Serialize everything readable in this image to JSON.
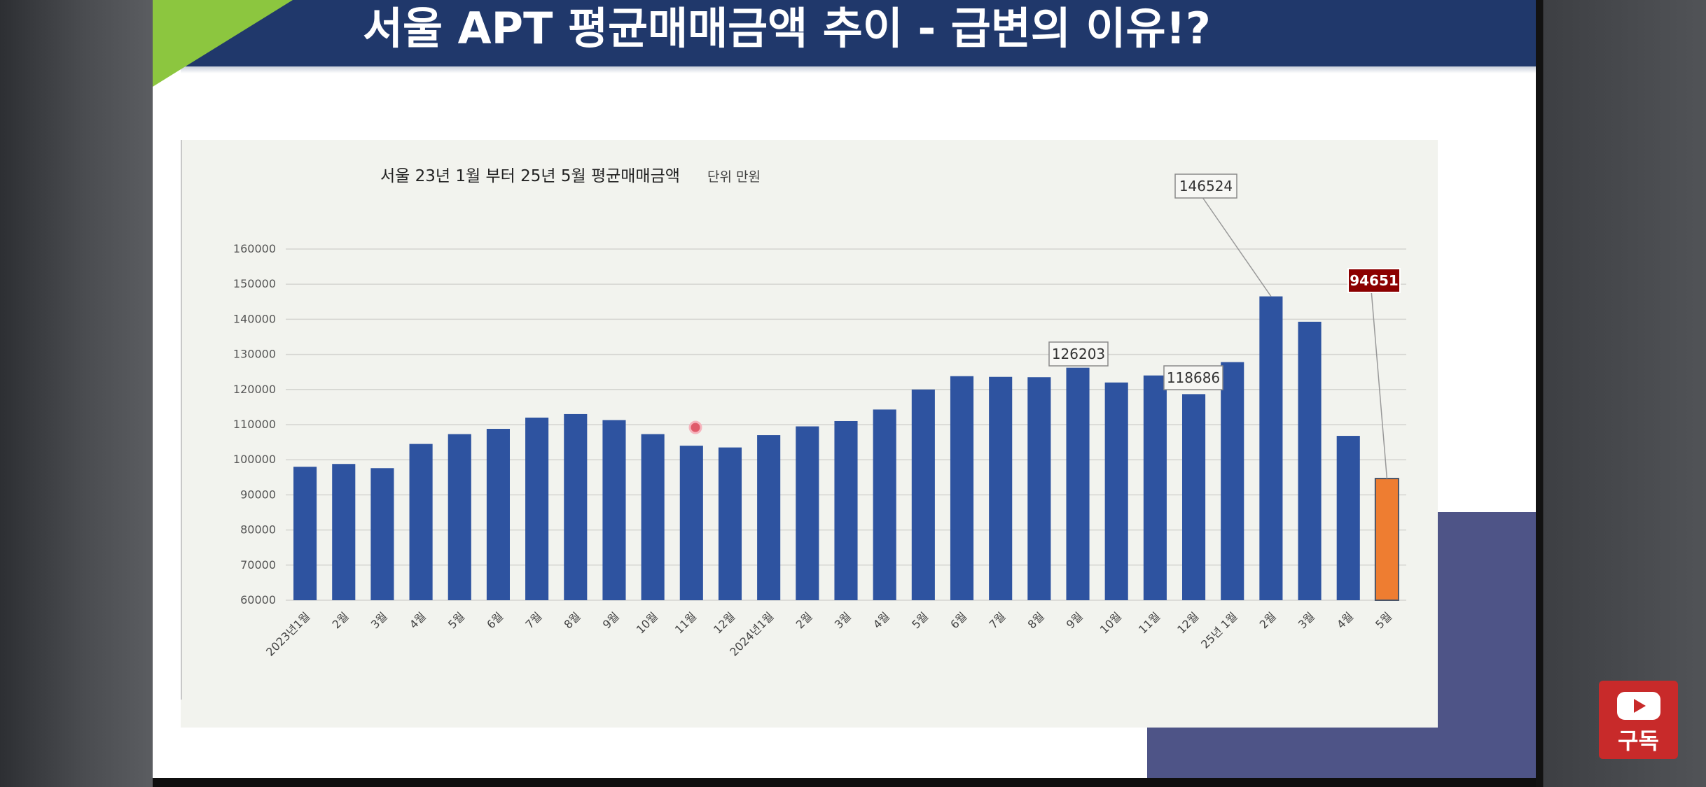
{
  "slide": {
    "title": "서울 APT  평균매매금액 추이 -  급변의 이유!?"
  },
  "subscribe": {
    "label": "구독",
    "icon": "youtube-play-icon"
  },
  "colors": {
    "title_bar": "#20386b",
    "accent_green": "#8cc63f",
    "bar": "#2e53a0",
    "bar_highlight": "#ee7d31",
    "label_dark": "#8b0000",
    "subscribe": "#c82a2a"
  },
  "chart_data": {
    "type": "bar",
    "title": "서울 23년 1월 부터 25년 5월  평균매매금액",
    "unit": "단위 만원",
    "xlabel": "",
    "ylabel": "",
    "ylim": [
      60000,
      160000
    ],
    "yticks": [
      60000,
      70000,
      80000,
      90000,
      100000,
      110000,
      120000,
      130000,
      140000,
      150000,
      160000
    ],
    "grid": true,
    "legend": "none",
    "categories": [
      "2023년1월",
      "2월",
      "3월",
      "4월",
      "5월",
      "6월",
      "7월",
      "8월",
      "9월",
      "10월",
      "11월",
      "12월",
      "2024년1월",
      "2월",
      "3월",
      "4월",
      "5월",
      "6월",
      "7월",
      "8월",
      "9월",
      "10월",
      "11월",
      "12월",
      "25년 1월",
      "2월",
      "3월",
      "4월",
      "5월"
    ],
    "values": [
      98000,
      98800,
      97600,
      104500,
      107300,
      108800,
      112000,
      113000,
      111300,
      107300,
      104000,
      103500,
      107000,
      109500,
      111000,
      114300,
      120000,
      123800,
      123600,
      123500,
      126203,
      122000,
      124000,
      118686,
      127800,
      146524,
      139300,
      106800,
      94651
    ],
    "highlight_index": 28,
    "annotations": [
      {
        "index": 20,
        "text": "126203",
        "style": "box"
      },
      {
        "index": 23,
        "text": "118686",
        "style": "box"
      },
      {
        "index": 25,
        "text": "146524",
        "style": "box"
      },
      {
        "index": 28,
        "text": "94651",
        "style": "dark"
      }
    ]
  }
}
